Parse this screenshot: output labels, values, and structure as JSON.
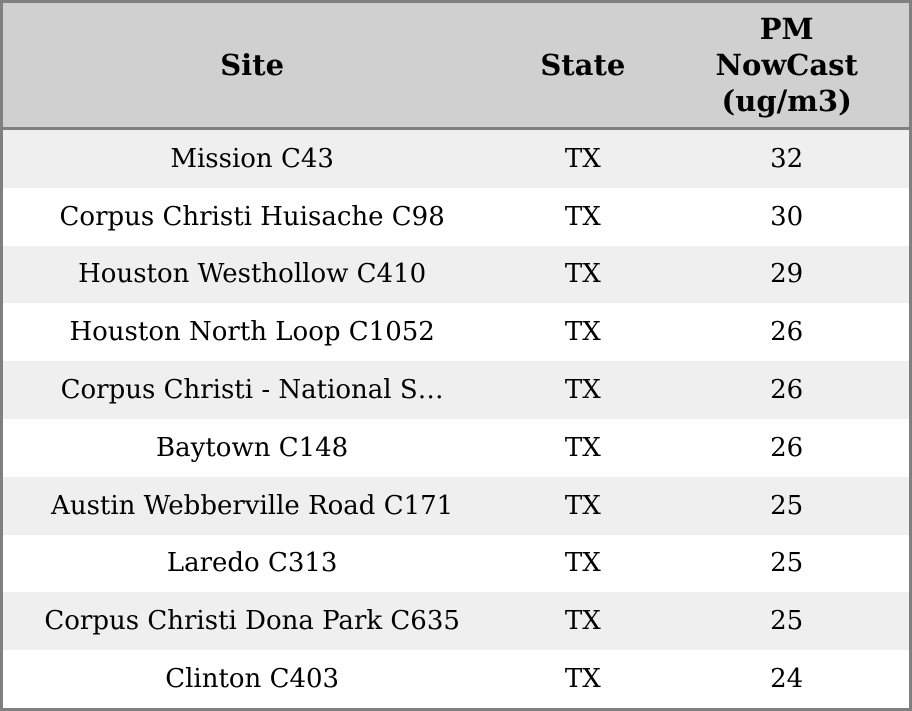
{
  "table": {
    "columns": [
      {
        "id": "site",
        "label": "Site"
      },
      {
        "id": "state",
        "label": "State"
      },
      {
        "id": "pm",
        "label": "PM\nNowCast\n(ug/m3)"
      }
    ],
    "rows": [
      {
        "site": "Mission C43",
        "state": "TX",
        "pm": "32"
      },
      {
        "site": "Corpus Christi Huisache C98",
        "state": "TX",
        "pm": "30"
      },
      {
        "site": "Houston Westhollow C410",
        "state": "TX",
        "pm": "29"
      },
      {
        "site": "Houston North Loop C1052",
        "state": "TX",
        "pm": "26"
      },
      {
        "site": "Corpus Christi - National S…",
        "state": "TX",
        "pm": "26"
      },
      {
        "site": "Baytown C148",
        "state": "TX",
        "pm": "26"
      },
      {
        "site": "Austin Webberville Road C171",
        "state": "TX",
        "pm": "25"
      },
      {
        "site": "Laredo C313",
        "state": "TX",
        "pm": "25"
      },
      {
        "site": "Corpus Christi Dona Park C635",
        "state": "TX",
        "pm": "25"
      },
      {
        "site": "Clinton C403",
        "state": "TX",
        "pm": "24"
      }
    ]
  },
  "colors": {
    "frame_border": "#808080",
    "header_bg": "#d0d0d0",
    "row_stripe_bg": "#efefef",
    "row_plain_bg": "#ffffff",
    "text": "#000000"
  }
}
